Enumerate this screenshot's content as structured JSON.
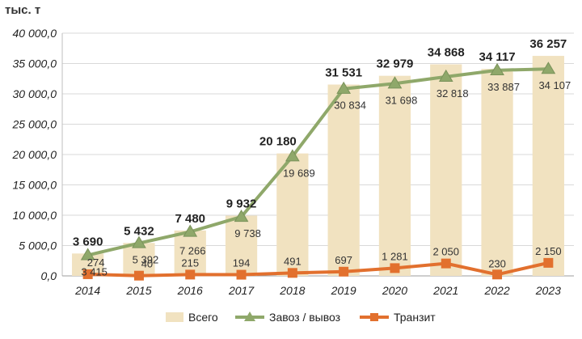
{
  "unit_label": "тыс. т",
  "chart_data": {
    "type": "bar",
    "categories": [
      "2014",
      "2015",
      "2016",
      "2017",
      "2018",
      "2019",
      "2020",
      "2021",
      "2022",
      "2023"
    ],
    "series": [
      {
        "name": "Всего",
        "kind": "bar",
        "color": "#F1E2C0",
        "values": [
          3690,
          5432,
          7480,
          9932,
          20180,
          31531,
          32979,
          34868,
          34117,
          36257
        ],
        "labels": [
          "3 690",
          "5 432",
          "7 480",
          "9 932",
          "20 180",
          "31 531",
          "32 979",
          "34 868",
          "34 117",
          "36 257"
        ]
      },
      {
        "name": "Завоз / вывоз",
        "kind": "line",
        "color": "#8FA86A",
        "marker": "triangle",
        "values": [
          3415,
          5392,
          7266,
          9738,
          19689,
          30834,
          31698,
          32818,
          33887,
          34107
        ],
        "labels": [
          "3 415",
          "5 392",
          "7 266",
          "9 738",
          "19 689",
          "30 834",
          "31 698",
          "32 818",
          "33 887",
          "34 107"
        ]
      },
      {
        "name": "Транзит",
        "kind": "line",
        "color": "#E2702E",
        "marker": "square",
        "values": [
          274,
          40,
          215,
          194,
          491,
          697,
          1281,
          2050,
          230,
          2150
        ],
        "labels": [
          "274",
          "40",
          "215",
          "194",
          "491",
          "697",
          "1 281",
          "2 050",
          "230",
          "2 150"
        ]
      }
    ],
    "ylim": [
      0,
      40000
    ],
    "yticks": [
      0,
      5000,
      10000,
      15000,
      20000,
      25000,
      30000,
      35000,
      40000
    ],
    "ytick_labels": [
      "0,0",
      "5 000,0",
      "10 000,0",
      "15 000,0",
      "20 000,0",
      "25 000,0",
      "30 000,0",
      "35 000,0",
      "40 000,0"
    ],
    "grid": true,
    "legend_position": "bottom"
  }
}
